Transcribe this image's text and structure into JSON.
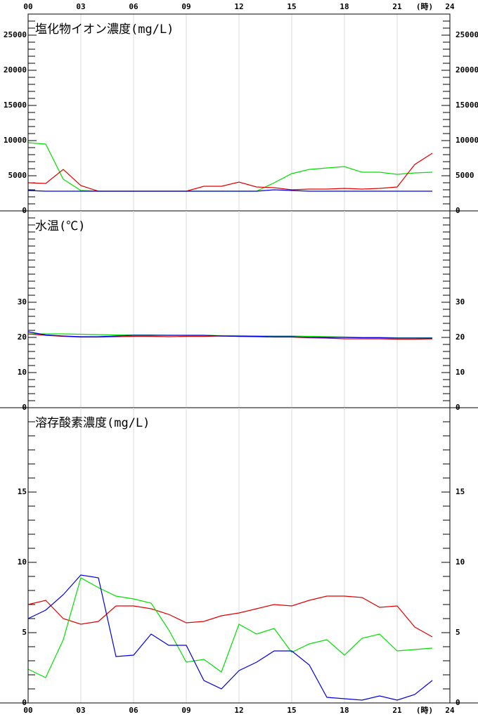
{
  "chart_data": [
    {
      "type": "line",
      "title": "塩化物イオン濃度(mg/L)",
      "x_unit": "(時)",
      "x": [
        0,
        1,
        2,
        3,
        4,
        5,
        6,
        7,
        8,
        9,
        10,
        11,
        12,
        13,
        14,
        15,
        16,
        17,
        18,
        19,
        20,
        21,
        22,
        23
      ],
      "xlim": [
        0,
        24
      ],
      "xticks": [
        {
          "value": 0,
          "label": "00"
        },
        {
          "value": 3,
          "label": "03"
        },
        {
          "value": 6,
          "label": "06"
        },
        {
          "value": 9,
          "label": "09"
        },
        12,
        15,
        18,
        21,
        24
      ],
      "ylim": [
        0,
        28000
      ],
      "yticks": [
        0,
        5000,
        10000,
        15000,
        20000,
        25000
      ],
      "series": [
        {
          "color": "#00e000",
          "values": [
            9700,
            9500,
            4500,
            2900,
            2800,
            2800,
            2800,
            2800,
            2800,
            2800,
            2800,
            2800,
            2800,
            2800,
            4000,
            5300,
            5900,
            6100,
            6300,
            5500,
            5500,
            5200,
            5400,
            5500
          ]
        },
        {
          "color": "#e00000",
          "values": [
            4000,
            3900,
            5900,
            3600,
            2800,
            2800,
            2800,
            2800,
            2800,
            2800,
            3500,
            3500,
            4100,
            3400,
            3300,
            3000,
            3100,
            3100,
            3200,
            3100,
            3200,
            3400,
            6600,
            8200
          ]
        },
        {
          "color": "#0000e0",
          "values": [
            2900,
            2800,
            2800,
            2800,
            2800,
            2800,
            2800,
            2800,
            2800,
            2800,
            2800,
            2800,
            2800,
            2800,
            3000,
            2900,
            2800,
            2800,
            2800,
            2800,
            2800,
            2800,
            2800,
            2800
          ]
        }
      ]
    },
    {
      "type": "line",
      "title": "水温(℃)",
      "x": [
        0,
        1,
        2,
        3,
        4,
        5,
        6,
        7,
        8,
        9,
        10,
        11,
        12,
        13,
        14,
        15,
        16,
        17,
        18,
        19,
        20,
        21,
        22,
        23
      ],
      "xlim": [
        0,
        24
      ],
      "xticks": [
        {
          "value": 0,
          "label": "00"
        },
        {
          "value": 3,
          "label": "03"
        },
        {
          "value": 6,
          "label": "06"
        },
        {
          "value": 9,
          "label": "09"
        },
        12,
        15,
        18,
        21,
        24
      ],
      "ylim": [
        0,
        56
      ],
      "yticks": [
        0,
        10,
        20,
        30
      ],
      "series": [
        {
          "color": "#00e000",
          "values": [
            21,
            21,
            21,
            20.9,
            20.8,
            20.7,
            20.7,
            20.7,
            20.6,
            20.6,
            20.6,
            20.5,
            20.5,
            20.4,
            20.4,
            20.4,
            20.3,
            20.2,
            20.1,
            20,
            20,
            19.9,
            19.9,
            19.9
          ]
        },
        {
          "color": "#e00000",
          "values": [
            21,
            20.6,
            20.3,
            20.1,
            20.1,
            20.2,
            20.3,
            20.3,
            20.2,
            20.3,
            20.3,
            20.4,
            20.3,
            20.2,
            20.1,
            20.1,
            19.9,
            19.8,
            19.6,
            19.6,
            19.6,
            19.5,
            19.5,
            19.6
          ]
        },
        {
          "color": "#0000e0",
          "values": [
            21.6,
            20.7,
            20.4,
            20.2,
            20.2,
            20.4,
            20.6,
            20.6,
            20.6,
            20.6,
            20.6,
            20.4,
            20.3,
            20.3,
            20.2,
            20.2,
            20,
            20,
            20,
            19.9,
            19.9,
            19.8,
            19.8,
            19.8
          ]
        }
      ]
    },
    {
      "type": "line",
      "title": "溶存酸素濃度(mg/L)",
      "x_unit": "(時)",
      "x": [
        0,
        1,
        2,
        3,
        4,
        5,
        6,
        7,
        8,
        9,
        10,
        11,
        12,
        13,
        14,
        15,
        16,
        17,
        18,
        19,
        20,
        21,
        22,
        23
      ],
      "xlim": [
        0,
        24
      ],
      "xticks": [
        {
          "value": 0,
          "label": "00"
        },
        {
          "value": 3,
          "label": "03"
        },
        {
          "value": 6,
          "label": "06"
        },
        {
          "value": 9,
          "label": "09"
        },
        12,
        15,
        18,
        21,
        24
      ],
      "ylim": [
        0,
        21
      ],
      "yticks": [
        0,
        5,
        10,
        15
      ],
      "series": [
        {
          "color": "#e00000",
          "values": [
            7.0,
            7.3,
            6.0,
            5.6,
            5.8,
            6.9,
            6.9,
            6.7,
            6.3,
            5.7,
            5.8,
            6.2,
            6.4,
            6.7,
            7.0,
            6.9,
            7.3,
            7.6,
            7.6,
            7.5,
            6.8,
            6.9,
            5.4,
            4.7
          ]
        },
        {
          "color": "#00e000",
          "values": [
            2.4,
            1.8,
            4.5,
            8.9,
            8.2,
            7.6,
            7.4,
            7.1,
            5.2,
            2.9,
            3.1,
            2.2,
            5.6,
            4.9,
            5.3,
            3.6,
            4.2,
            4.5,
            3.4,
            4.6,
            4.9,
            3.7,
            3.8,
            3.9
          ]
        },
        {
          "color": "#0000e0",
          "values": [
            6.0,
            6.6,
            7.7,
            9.1,
            8.9,
            3.3,
            3.4,
            4.9,
            4.1,
            4.1,
            1.6,
            1.0,
            2.3,
            2.9,
            3.7,
            3.7,
            2.7,
            0.4,
            0.3,
            0.2,
            0.5,
            0.2,
            0.6,
            1.6
          ]
        }
      ]
    }
  ]
}
